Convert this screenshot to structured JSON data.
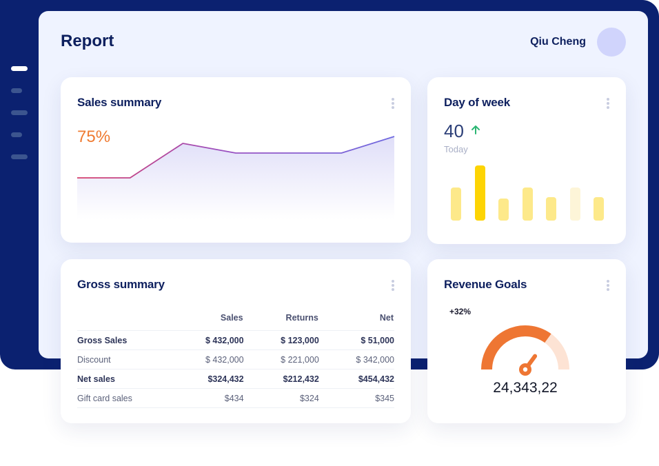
{
  "header": {
    "title": "Report",
    "user_name": "Qiu Cheng"
  },
  "sidebar": {
    "items": [
      "menu-item-1",
      "menu-item-2",
      "menu-item-3",
      "menu-item-4",
      "menu-item-5"
    ],
    "active_index": 0
  },
  "sales_summary": {
    "title": "Sales summary",
    "percentage": "75%",
    "colors": {
      "percentage": "#ef7b32",
      "line_start": "#d63f6a",
      "line_end": "#6f6ae0"
    }
  },
  "day_of_week": {
    "title": "Day of week",
    "value": "40",
    "trend": "up",
    "subtitle": "Today",
    "icon": "arrow-up-icon",
    "colors": {
      "bar": "#fde98a",
      "highlight": "#fdd404",
      "faded": "#fdf5d8",
      "arrow": "#2bb673"
    }
  },
  "gross_summary": {
    "title": "Gross summary",
    "columns": [
      "",
      "Sales",
      "Returns",
      "Net"
    ],
    "rows": [
      {
        "label": "Gross Sales",
        "sales": "$ 432,000",
        "returns": "$ 123,000",
        "net": "$ 51,000",
        "bold": true
      },
      {
        "label": "Discount",
        "sales": "$ 432,000",
        "returns": "$ 221,000",
        "net": "$ 342,000",
        "bold": false
      },
      {
        "label": "Net sales",
        "sales": "$324,432",
        "returns": "$212,432",
        "net": "$454,432",
        "bold": true
      },
      {
        "label": "Gift card sales",
        "sales": "$434",
        "returns": "$324",
        "net": "$345",
        "bold": false
      }
    ]
  },
  "revenue_goals": {
    "title": "Revenue Goals",
    "change": "+32%",
    "amount": "24,343,22",
    "progress": 0.7,
    "colors": {
      "filled": "#ee7633",
      "remaining": "#fde3d4"
    }
  },
  "chart_data": [
    {
      "type": "area",
      "title": "Sales summary",
      "x": [
        0,
        1,
        2,
        3,
        4,
        5,
        6
      ],
      "values": [
        30,
        30,
        55,
        48,
        48,
        48,
        60
      ],
      "ylim": [
        0,
        70
      ],
      "grid": false
    },
    {
      "type": "bar",
      "title": "Day of week",
      "values": [
        48,
        80,
        32,
        48,
        34,
        48,
        34
      ],
      "highlight_index": 1,
      "faded_index": 5,
      "ylim": [
        0,
        80
      ],
      "grid": false
    }
  ]
}
